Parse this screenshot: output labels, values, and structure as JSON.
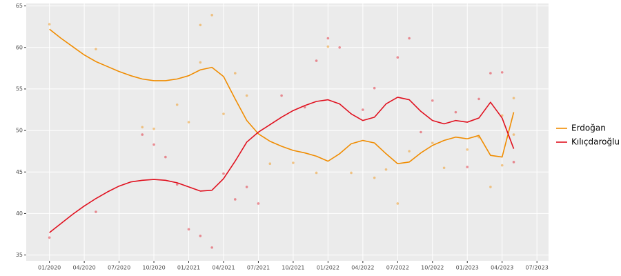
{
  "chart_data": {
    "type": "line",
    "xlim": [
      "11/2019",
      "08/2023"
    ],
    "xticks": [
      "01/2020",
      "04/2020",
      "07/2020",
      "10/2020",
      "01/2021",
      "04/2021",
      "07/2021",
      "10/2021",
      "01/2022",
      "04/2022",
      "07/2022",
      "10/2022",
      "01/2023",
      "04/2023",
      "07/2023"
    ],
    "ylim": [
      34.3,
      65.3
    ],
    "yticks": [
      35,
      40,
      45,
      50,
      55,
      60,
      65
    ],
    "grid": true,
    "legend": "right",
    "x": [
      "01/2020",
      "02/2020",
      "03/2020",
      "04/2020",
      "05/2020",
      "06/2020",
      "07/2020",
      "08/2020",
      "09/2020",
      "10/2020",
      "11/2020",
      "12/2020",
      "01/2021",
      "02/2021",
      "03/2021",
      "04/2021",
      "05/2021",
      "06/2021",
      "07/2021",
      "08/2021",
      "09/2021",
      "10/2021",
      "11/2021",
      "12/2021",
      "01/2022",
      "02/2022",
      "03/2022",
      "04/2022",
      "05/2022",
      "06/2022",
      "07/2022",
      "08/2022",
      "09/2022",
      "10/2022",
      "11/2022",
      "12/2022",
      "01/2023",
      "02/2023",
      "03/2023",
      "04/2023",
      "05/2023"
    ],
    "series": [
      {
        "name": "Erdoğan",
        "color": "#f08c00",
        "values": [
          62.2,
          61.1,
          60.1,
          59.1,
          58.3,
          57.7,
          57.1,
          56.6,
          56.2,
          56.0,
          56.0,
          56.2,
          56.6,
          57.3,
          57.6,
          56.5,
          53.8,
          51.2,
          49.6,
          48.7,
          48.1,
          47.6,
          47.3,
          46.9,
          46.3,
          47.2,
          48.4,
          48.8,
          48.5,
          47.2,
          46.0,
          46.2,
          47.3,
          48.2,
          48.8,
          49.2,
          49.0,
          49.4,
          47.0,
          46.8,
          52.2
        ],
        "points": {
          "x": [
            "01/2020",
            "05/2020",
            "09/2020",
            "10/2020",
            "12/2020",
            "01/2021",
            "02/2021",
            "02/2021",
            "03/2021",
            "04/2021",
            "05/2021",
            "06/2021",
            "08/2021",
            "10/2021",
            "12/2021",
            "01/2022",
            "03/2022",
            "05/2022",
            "06/2022",
            "07/2022",
            "08/2022",
            "10/2022",
            "11/2022",
            "01/2023",
            "02/2023",
            "03/2023",
            "04/2023",
            "04/2023",
            "05/2023",
            "05/2023"
          ],
          "y": [
            62.8,
            59.8,
            50.4,
            50.2,
            53.1,
            51,
            62.7,
            58.2,
            63.9,
            52,
            56.9,
            54.2,
            46,
            46.1,
            44.9,
            60.1,
            44.9,
            44.3,
            45.3,
            41.2,
            47.5,
            48.5,
            45.5,
            47.7,
            49.2,
            43.2,
            45.8,
            51.8,
            53.9,
            49.5
          ]
        }
      },
      {
        "name": "Kılıçdaroğlu",
        "color": "#e0101e",
        "values": [
          37.7,
          38.8,
          39.9,
          40.9,
          41.8,
          42.6,
          43.3,
          43.8,
          44.0,
          44.1,
          44.0,
          43.7,
          43.2,
          42.7,
          42.8,
          44.2,
          46.3,
          48.6,
          49.8,
          50.7,
          51.6,
          52.4,
          53.0,
          53.5,
          53.7,
          53.2,
          52.0,
          51.2,
          51.6,
          53.2,
          54.0,
          53.7,
          52.3,
          51.2,
          50.8,
          51.2,
          51.0,
          51.5,
          53.4,
          51.5,
          47.8
        ],
        "points": {
          "x": [
            "01/2020",
            "05/2020",
            "09/2020",
            "10/2020",
            "11/2020",
            "12/2020",
            "01/2021",
            "02/2021",
            "03/2021",
            "04/2021",
            "05/2021",
            "06/2021",
            "07/2021",
            "09/2021",
            "11/2021",
            "12/2021",
            "01/2022",
            "02/2022",
            "04/2022",
            "05/2022",
            "07/2022",
            "08/2022",
            "09/2022",
            "10/2022",
            "12/2022",
            "01/2023",
            "02/2023",
            "03/2023",
            "04/2023",
            "05/2023"
          ],
          "y": [
            37.1,
            40.2,
            49.5,
            48.3,
            46.8,
            43.5,
            38.1,
            37.3,
            35.9,
            44.8,
            41.7,
            43.2,
            41.2,
            54.2,
            52.8,
            58.4,
            61.1,
            60.0,
            52.5,
            55.1,
            58.8,
            61.1,
            49.8,
            53.6,
            52.2,
            45.6,
            53.8,
            56.9,
            57.0,
            46.2
          ]
        }
      }
    ]
  }
}
